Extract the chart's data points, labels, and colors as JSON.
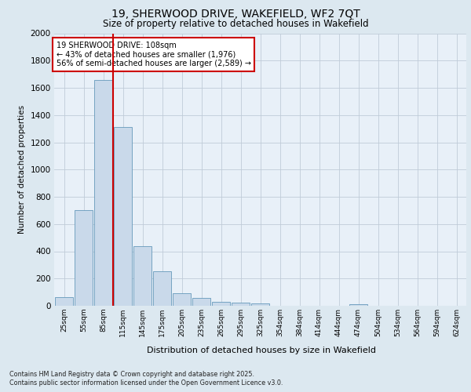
{
  "title_line1": "19, SHERWOOD DRIVE, WAKEFIELD, WF2 7QT",
  "title_line2": "Size of property relative to detached houses in Wakefield",
  "xlabel": "Distribution of detached houses by size in Wakefield",
  "ylabel": "Number of detached properties",
  "categories": [
    "25sqm",
    "55sqm",
    "85sqm",
    "115sqm",
    "145sqm",
    "175sqm",
    "205sqm",
    "235sqm",
    "265sqm",
    "295sqm",
    "325sqm",
    "354sqm",
    "384sqm",
    "414sqm",
    "444sqm",
    "474sqm",
    "504sqm",
    "534sqm",
    "564sqm",
    "594sqm",
    "624sqm"
  ],
  "values": [
    65,
    700,
    1660,
    1310,
    440,
    255,
    90,
    55,
    30,
    22,
    15,
    0,
    0,
    0,
    0,
    12,
    0,
    0,
    0,
    0,
    0
  ],
  "bar_color": "#c9d9ea",
  "bar_edge_color": "#6699bb",
  "ylim": [
    0,
    2000
  ],
  "yticks": [
    0,
    200,
    400,
    600,
    800,
    1000,
    1200,
    1400,
    1600,
    1800,
    2000
  ],
  "annotation_text": "19 SHERWOOD DRIVE: 108sqm\n← 43% of detached houses are smaller (1,976)\n56% of semi-detached houses are larger (2,589) →",
  "annotation_box_color": "#ffffff",
  "annotation_box_edge": "#cc0000",
  "vline_color": "#cc0000",
  "footer_line1": "Contains HM Land Registry data © Crown copyright and database right 2025.",
  "footer_line2": "Contains public sector information licensed under the Open Government Licence v3.0.",
  "bg_color": "#dce8f0",
  "plot_bg_color": "#e8f0f8",
  "grid_color": "#c0ccd8"
}
